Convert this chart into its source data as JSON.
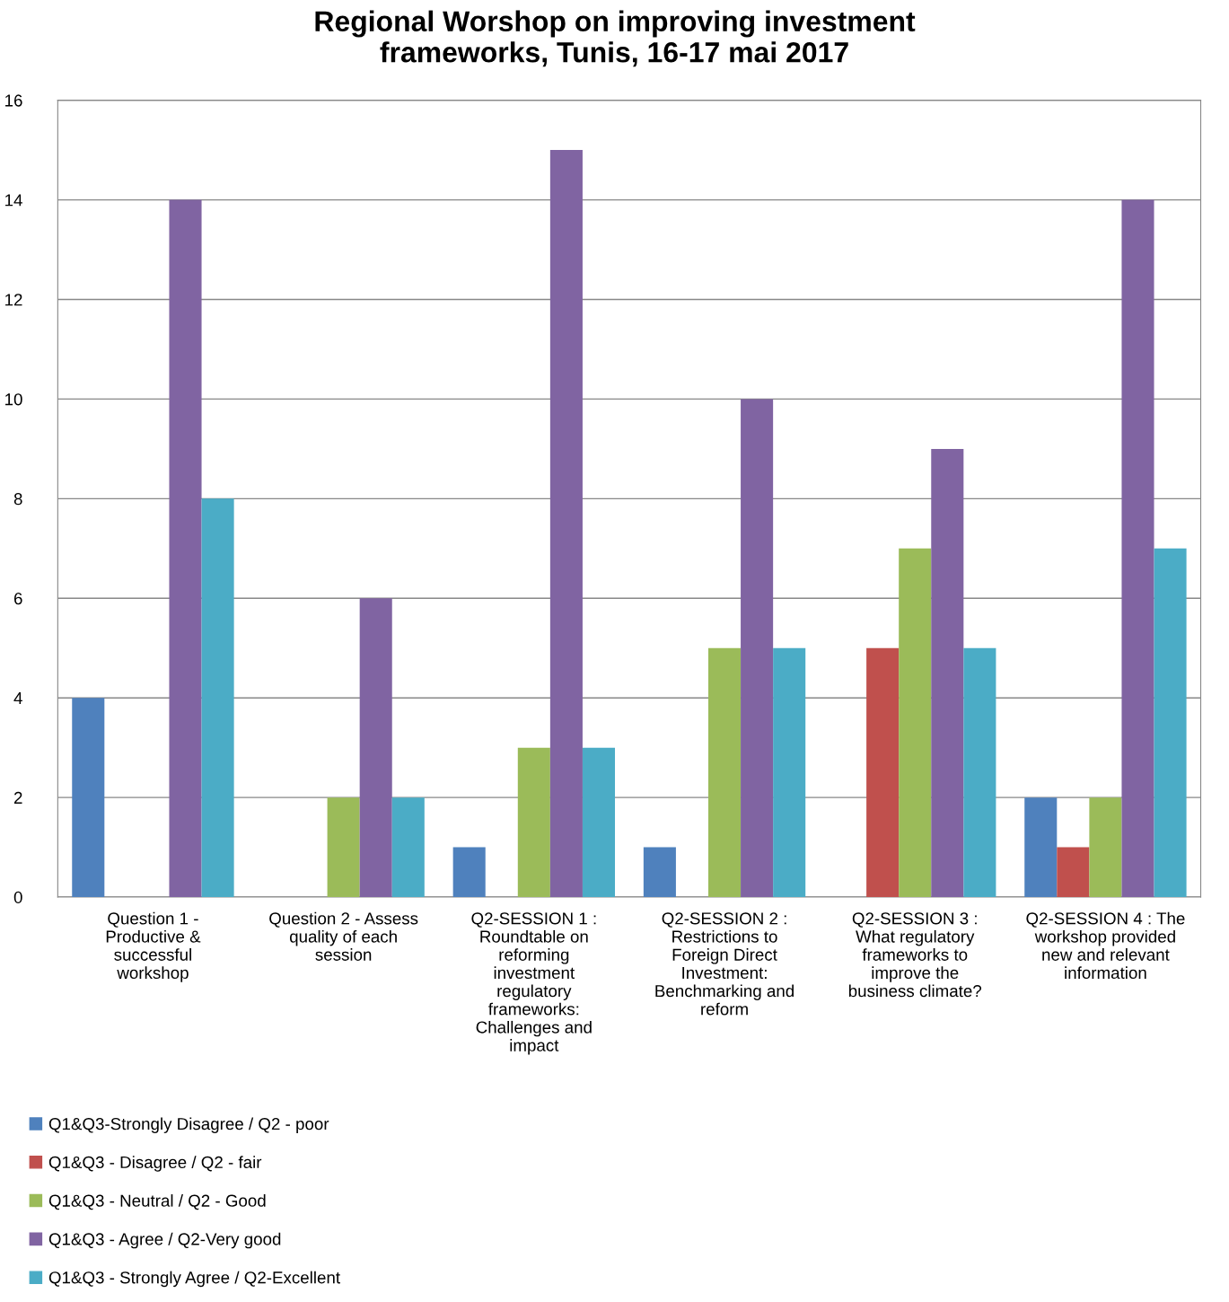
{
  "chart_data": {
    "type": "bar",
    "title": "Regional Worshop on improving investment\nframeworks, Tunis, 16-17 mai 2017",
    "categories": [
      "Question 1 -\nProductive &\nsuccessful\nworkshop",
      "Question 2 - Assess\nquality of each\nsession",
      "Q2-SESSION 1 :\nRoundtable on\nreforming\ninvestment\nregulatory\nframeworks:\nChallenges and\nimpact",
      "Q2-SESSION 2 :\nRestrictions to\nForeign Direct\nInvestment:\nBenchmarking and\nreform",
      "Q2-SESSION 3 :\nWhat regulatory\nframeworks to\nimprove the\nbusiness climate?",
      "Q2-SESSION 4 : The\nworkshop provided\nnew and relevant\ninformation"
    ],
    "series": [
      {
        "name": "Q1&Q3-Strongly Disagree / Q2 - poor",
        "color": "#4f81bd",
        "values": [
          4,
          0,
          1,
          1,
          0,
          2
        ]
      },
      {
        "name": "Q1&Q3 - Disagree / Q2 - fair",
        "color": "#c0504d",
        "values": [
          0,
          0,
          0,
          0,
          5,
          1
        ]
      },
      {
        "name": "Q1&Q3 - Neutral / Q2 - Good",
        "color": "#9bbb59",
        "values": [
          0,
          2,
          3,
          5,
          7,
          2
        ]
      },
      {
        "name": "Q1&Q3 - Agree / Q2-Very good",
        "color": "#8064a2",
        "values": [
          14,
          6,
          15,
          10,
          9,
          14
        ]
      },
      {
        "name": "Q1&Q3 - Strongly Agree / Q2-Excellent",
        "color": "#4bacc6",
        "values": [
          8,
          2,
          3,
          5,
          5,
          7
        ]
      }
    ],
    "ylim": [
      0,
      16
    ],
    "yticks": [
      0,
      2,
      4,
      6,
      8,
      10,
      12,
      14,
      16
    ],
    "grid": "y",
    "legend": "bottom left"
  }
}
